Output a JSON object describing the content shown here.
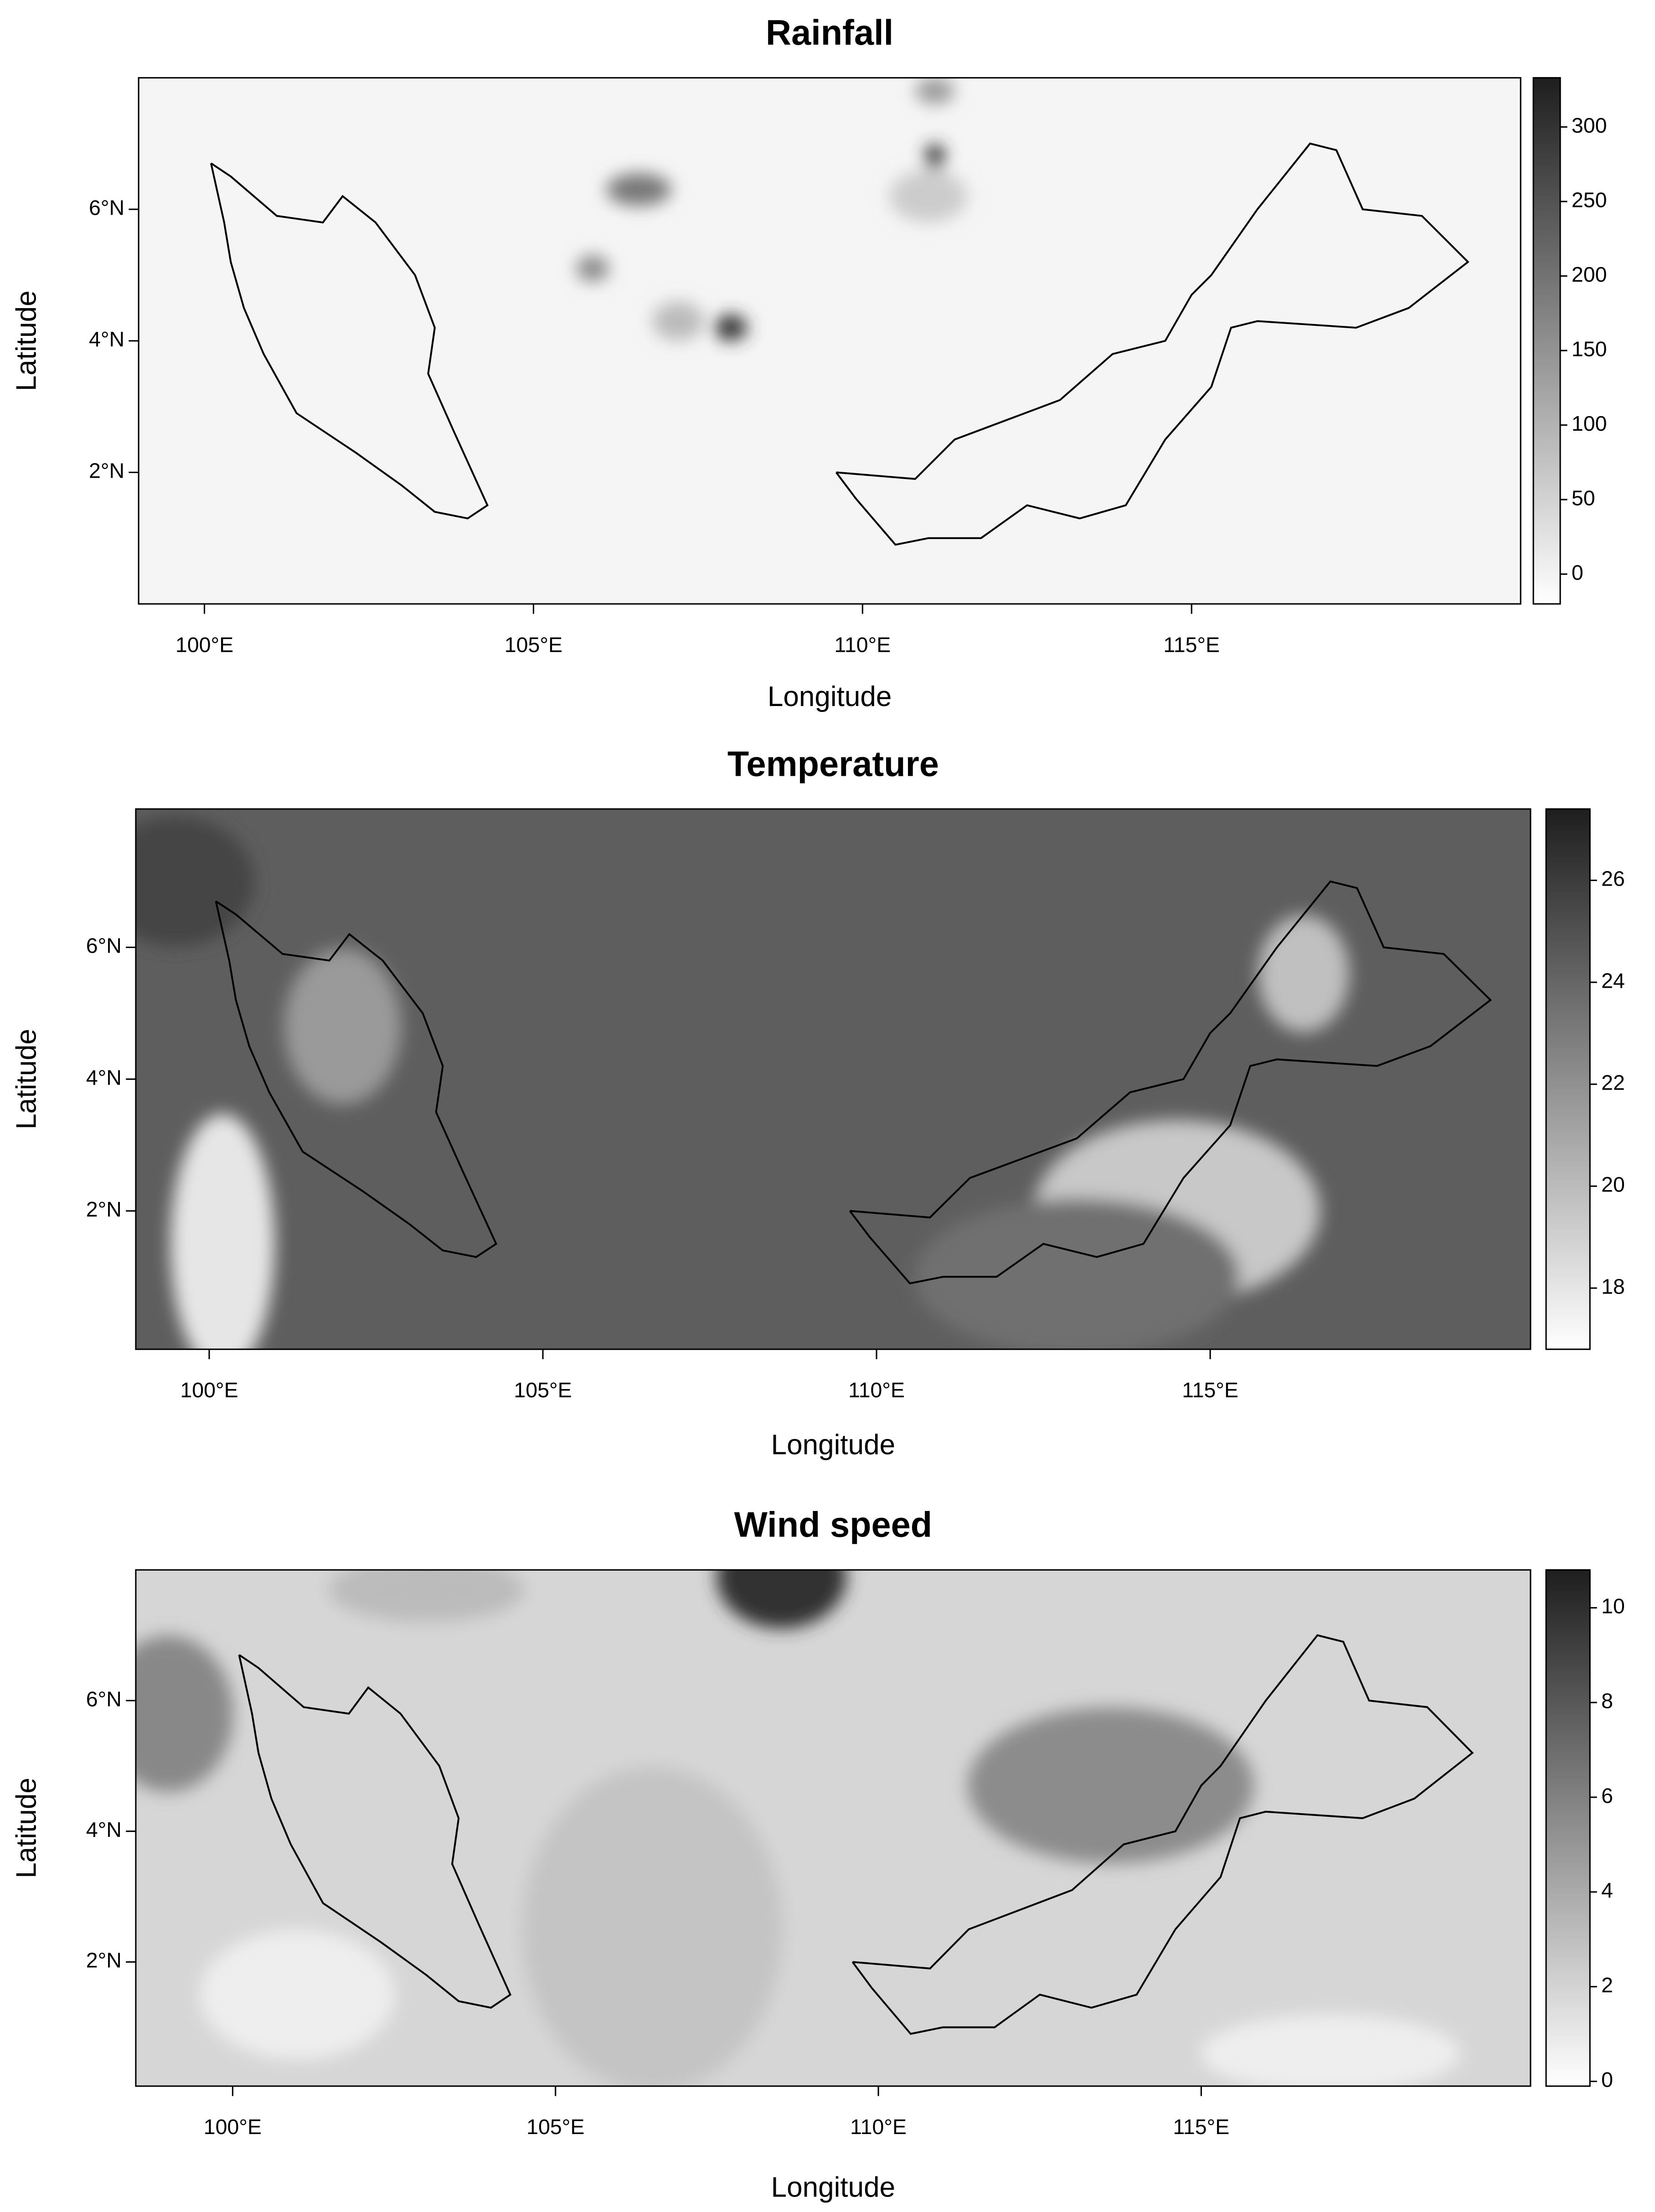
{
  "chart_data": [
    {
      "type": "raster",
      "title": "Rainfall",
      "x_label": "Longitude",
      "y_label": "Latitude",
      "xlim": [
        99,
        120
      ],
      "ylim": [
        0,
        8
      ],
      "xticks": [
        {
          "value": 100,
          "label": "100°E"
        },
        {
          "value": 105,
          "label": "105°E"
        },
        {
          "value": 110,
          "label": "110°E"
        },
        {
          "value": 115,
          "label": "115°E"
        }
      ],
      "yticks": [
        {
          "value": 2,
          "label": "2°N"
        },
        {
          "value": 4,
          "label": "4°N"
        },
        {
          "value": 6,
          "label": "6°N"
        }
      ],
      "colorbar": {
        "lim": [
          -20,
          333
        ],
        "ticks": [
          0,
          50,
          100,
          150,
          200,
          250,
          300
        ]
      }
    },
    {
      "type": "raster",
      "title": "Temperature",
      "x_label": "Longitude",
      "y_label": "Latitude",
      "xlim": [
        98.9,
        119.8
      ],
      "ylim": [
        -0.1,
        8.1
      ],
      "xticks": [
        {
          "value": 100,
          "label": "100°E"
        },
        {
          "value": 105,
          "label": "105°E"
        },
        {
          "value": 110,
          "label": "110°E"
        },
        {
          "value": 115,
          "label": "115°E"
        }
      ],
      "yticks": [
        {
          "value": 2,
          "label": "2°N"
        },
        {
          "value": 4,
          "label": "4°N"
        },
        {
          "value": 6,
          "label": "6°N"
        }
      ],
      "colorbar": {
        "lim": [
          16.8,
          27.4
        ],
        "ticks": [
          18,
          20,
          22,
          24,
          26
        ]
      }
    },
    {
      "type": "raster",
      "title": "Wind speed",
      "x_label": "Longitude",
      "y_label": "Latitude",
      "xlim": [
        98.5,
        120.1
      ],
      "ylim": [
        0.1,
        8.0
      ],
      "xticks": [
        {
          "value": 100,
          "label": "100°E"
        },
        {
          "value": 105,
          "label": "105°E"
        },
        {
          "value": 110,
          "label": "110°E"
        },
        {
          "value": 115,
          "label": "115°E"
        }
      ],
      "yticks": [
        {
          "value": 2,
          "label": "2°N"
        },
        {
          "value": 4,
          "label": "4°N"
        },
        {
          "value": 6,
          "label": "6°N"
        }
      ],
      "colorbar": {
        "lim": [
          -0.1,
          10.8
        ],
        "ticks": [
          0,
          2,
          4,
          6,
          8,
          10
        ]
      }
    }
  ]
}
